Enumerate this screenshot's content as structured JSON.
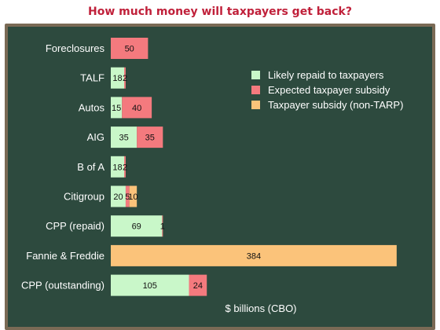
{
  "chart_data": {
    "type": "bar",
    "stacked": true,
    "orientation": "horizontal",
    "title": "How much money will taxpayers get back?",
    "xlabel": "$ billions (CBO)",
    "xlim": [
      0,
      400
    ],
    "grid": false,
    "legend_position": "top-right",
    "categories": [
      "Foreclosures",
      "TALF",
      "Autos",
      "AIG",
      "B of A",
      "Citigroup",
      "CPP (repaid)",
      "Fannie & Freddie",
      "CPP (outstanding)"
    ],
    "series": [
      {
        "name": "Likely repaid to taxpayers",
        "color": "#c9f7c9",
        "values": [
          0,
          18,
          15,
          35,
          18,
          20,
          69,
          0,
          105
        ]
      },
      {
        "name": "Expected taxpayer subsidy",
        "color": "#f47a7e",
        "values": [
          50,
          2,
          40,
          35,
          2,
          5,
          1,
          0,
          24
        ]
      },
      {
        "name": "Taxpayer subsidy (non-TARP)",
        "color": "#fbc37a",
        "values": [
          0,
          0,
          0,
          0,
          0,
          10,
          0,
          384,
          0
        ]
      }
    ],
    "data_labels": [
      [
        "",
        "18",
        "15",
        "35",
        "18",
        "20",
        "69",
        "",
        "105"
      ],
      [
        "50",
        "2",
        "40",
        "35",
        "2",
        "5",
        "1",
        "",
        "24"
      ],
      [
        "",
        "",
        "",
        "",
        "",
        "10",
        "",
        "384",
        ""
      ]
    ]
  }
}
